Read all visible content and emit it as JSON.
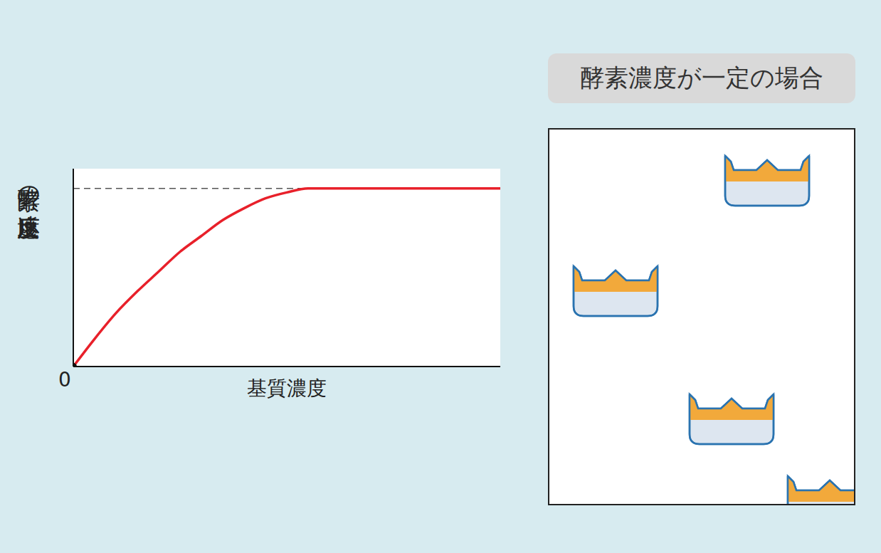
{
  "chart_data": {
    "type": "line",
    "x_label": "基質濃度",
    "y_label": "酵素の反応速度",
    "x": [
      0,
      5,
      10,
      15,
      20,
      25,
      30,
      35,
      40,
      45,
      50,
      55,
      100
    ],
    "values": [
      0,
      14,
      27,
      38,
      48,
      58,
      66,
      74,
      80,
      85,
      88,
      90,
      90
    ],
    "color": "#e8202a",
    "xlim": [
      0,
      100
    ],
    "ylim": [
      0,
      100
    ],
    "xticks": [
      0
    ],
    "yticks": [],
    "tick_labels": "x",
    "grid": false,
    "asymptote": 90,
    "asymptote_style": "dashed"
  },
  "panel": {
    "title": "酵素濃度が一定の場合"
  }
}
